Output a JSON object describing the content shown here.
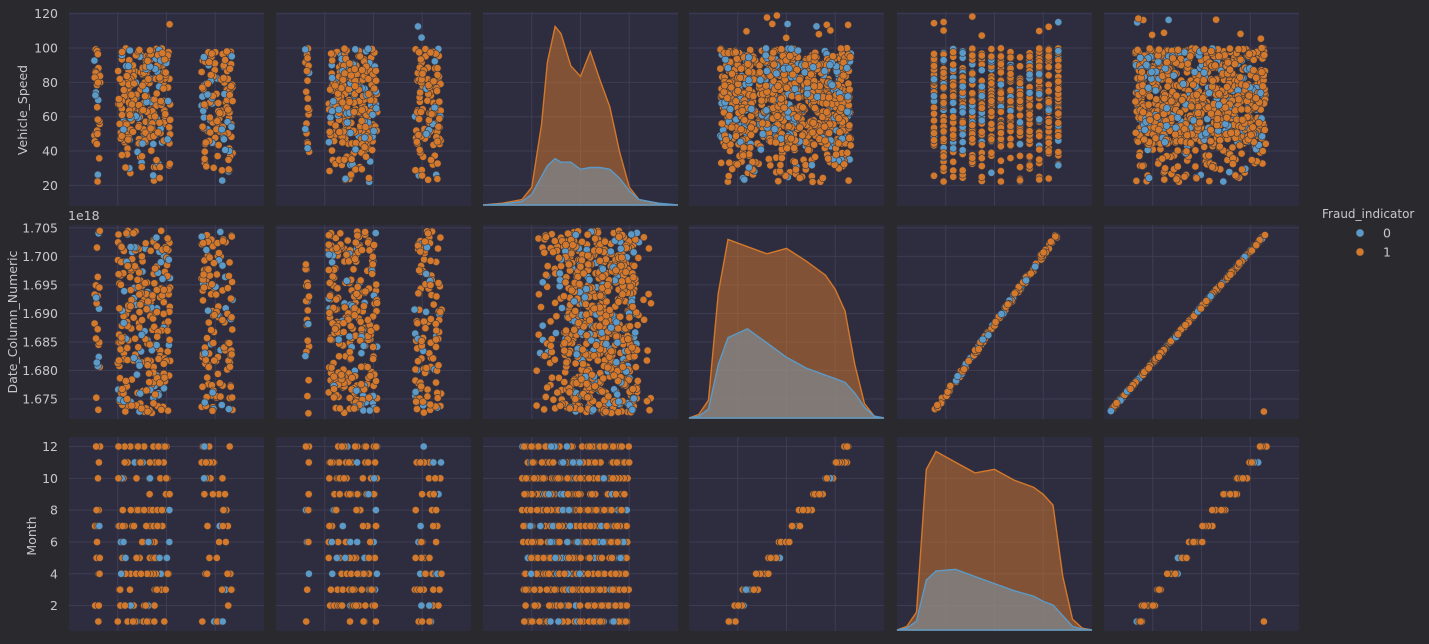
{
  "chart_data": {
    "type": "scatter",
    "subtype": "pairplot",
    "title": "",
    "background_color": "#2a2a2e",
    "panel_color": "#2e2d3f",
    "grid": true,
    "hue": {
      "title": "Fraud_indicator",
      "levels": [
        {
          "label": "0",
          "color": "#5b9ac8"
        },
        {
          "label": "1",
          "color": "#d4782b"
        }
      ],
      "legend_placement": "right"
    },
    "row_variables": [
      {
        "name": "Vehicle_Speed",
        "ylim": [
          8,
          121
        ],
        "ticks": [
          20,
          40,
          60,
          80,
          100,
          120
        ],
        "tick_labels": [
          "20",
          "40",
          "60",
          "80",
          "100",
          "120"
        ],
        "offset_label": ""
      },
      {
        "name": "Date_Column_Numeric",
        "ylim": [
          1.6715,
          1.7055
        ],
        "ticks": [
          1.675,
          1.68,
          1.685,
          1.69,
          1.695,
          1.7,
          1.705
        ],
        "tick_labels": [
          "1.675",
          "1.680",
          "1.685",
          "1.690",
          "1.695",
          "1.700",
          "1.705"
        ],
        "offset_label": "1e18"
      },
      {
        "name": "Month",
        "ylim": [
          0.4,
          12.6
        ],
        "ticks": [
          2,
          4,
          6,
          8,
          10,
          12
        ],
        "tick_labels": [
          "2",
          "4",
          "6",
          "8",
          "10",
          "12"
        ],
        "offset_label": ""
      }
    ],
    "column_count": 6,
    "panel_kinds": [
      [
        "scatter",
        "scatter",
        "kde",
        "scatter",
        "scatter",
        "scatter"
      ],
      [
        "scatter",
        "scatter",
        "scatter",
        "kde",
        "scatter",
        "scatter"
      ],
      [
        "scatter",
        "scatter",
        "scatter",
        "scatter",
        "kde",
        "scatter"
      ]
    ],
    "kde_panels": [
      {
        "row": 0,
        "col": 2,
        "x": [
          0,
          0.1,
          0.2,
          0.25,
          0.3,
          0.33,
          0.37,
          0.4,
          0.45,
          0.5,
          0.55,
          0.6,
          0.65,
          0.7,
          0.75,
          0.8,
          0.9,
          1.0
        ],
        "class_0": [
          0,
          0.005,
          0.02,
          0.06,
          0.16,
          0.22,
          0.26,
          0.24,
          0.24,
          0.2,
          0.21,
          0.21,
          0.2,
          0.15,
          0.08,
          0.03,
          0.01,
          0
        ],
        "class_1": [
          0,
          0.01,
          0.03,
          0.1,
          0.45,
          0.8,
          1.0,
          0.96,
          0.78,
          0.72,
          0.86,
          0.7,
          0.55,
          0.3,
          0.1,
          0.03,
          0.005,
          0
        ]
      },
      {
        "row": 1,
        "col": 3,
        "x": [
          0,
          0.05,
          0.1,
          0.15,
          0.2,
          0.3,
          0.4,
          0.5,
          0.6,
          0.7,
          0.75,
          0.8,
          0.85,
          0.9,
          0.95,
          1.0
        ],
        "class_0": [
          0,
          0.01,
          0.05,
          0.3,
          0.45,
          0.5,
          0.42,
          0.34,
          0.28,
          0.24,
          0.22,
          0.2,
          0.14,
          0.06,
          0.01,
          0
        ],
        "class_1": [
          0,
          0.02,
          0.1,
          0.7,
          1.0,
          0.96,
          0.92,
          0.95,
          0.88,
          0.8,
          0.72,
          0.6,
          0.3,
          0.08,
          0.01,
          0
        ]
      },
      {
        "row": 2,
        "col": 4,
        "x": [
          0,
          0.05,
          0.1,
          0.15,
          0.2,
          0.3,
          0.4,
          0.5,
          0.6,
          0.7,
          0.75,
          0.8,
          0.85,
          0.9,
          0.95,
          1.0
        ],
        "class_0": [
          0,
          0.01,
          0.05,
          0.28,
          0.33,
          0.34,
          0.3,
          0.26,
          0.22,
          0.19,
          0.16,
          0.14,
          0.08,
          0.02,
          0.005,
          0
        ],
        "class_1": [
          0,
          0.02,
          0.1,
          0.9,
          1.0,
          0.94,
          0.88,
          0.9,
          0.84,
          0.8,
          0.76,
          0.7,
          0.3,
          0.06,
          0.01,
          0
        ]
      }
    ]
  }
}
